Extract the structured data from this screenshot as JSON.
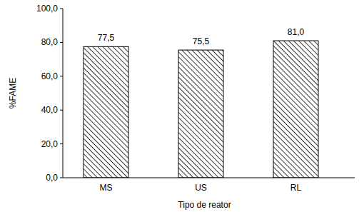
{
  "chart_data": {
    "type": "bar",
    "x_label": "Tipo de reator",
    "y_label": "%FAME",
    "categories": [
      "MS",
      "US",
      "RL"
    ],
    "values": [
      77.5,
      75.5,
      81.0
    ],
    "value_labels": [
      "77,5",
      "75,5",
      "81,0"
    ],
    "data_labels": true,
    "color": "#000000",
    "ylim": [
      0,
      100
    ],
    "yticks": [
      {
        "value": 0,
        "label": "0,0"
      },
      {
        "value": 20,
        "label": "20,0"
      },
      {
        "value": 40,
        "label": "40,0"
      },
      {
        "value": 60,
        "label": "60,0"
      },
      {
        "value": 80,
        "label": "80,0"
      },
      {
        "value": 100,
        "label": "100,0"
      }
    ],
    "grid": false
  }
}
